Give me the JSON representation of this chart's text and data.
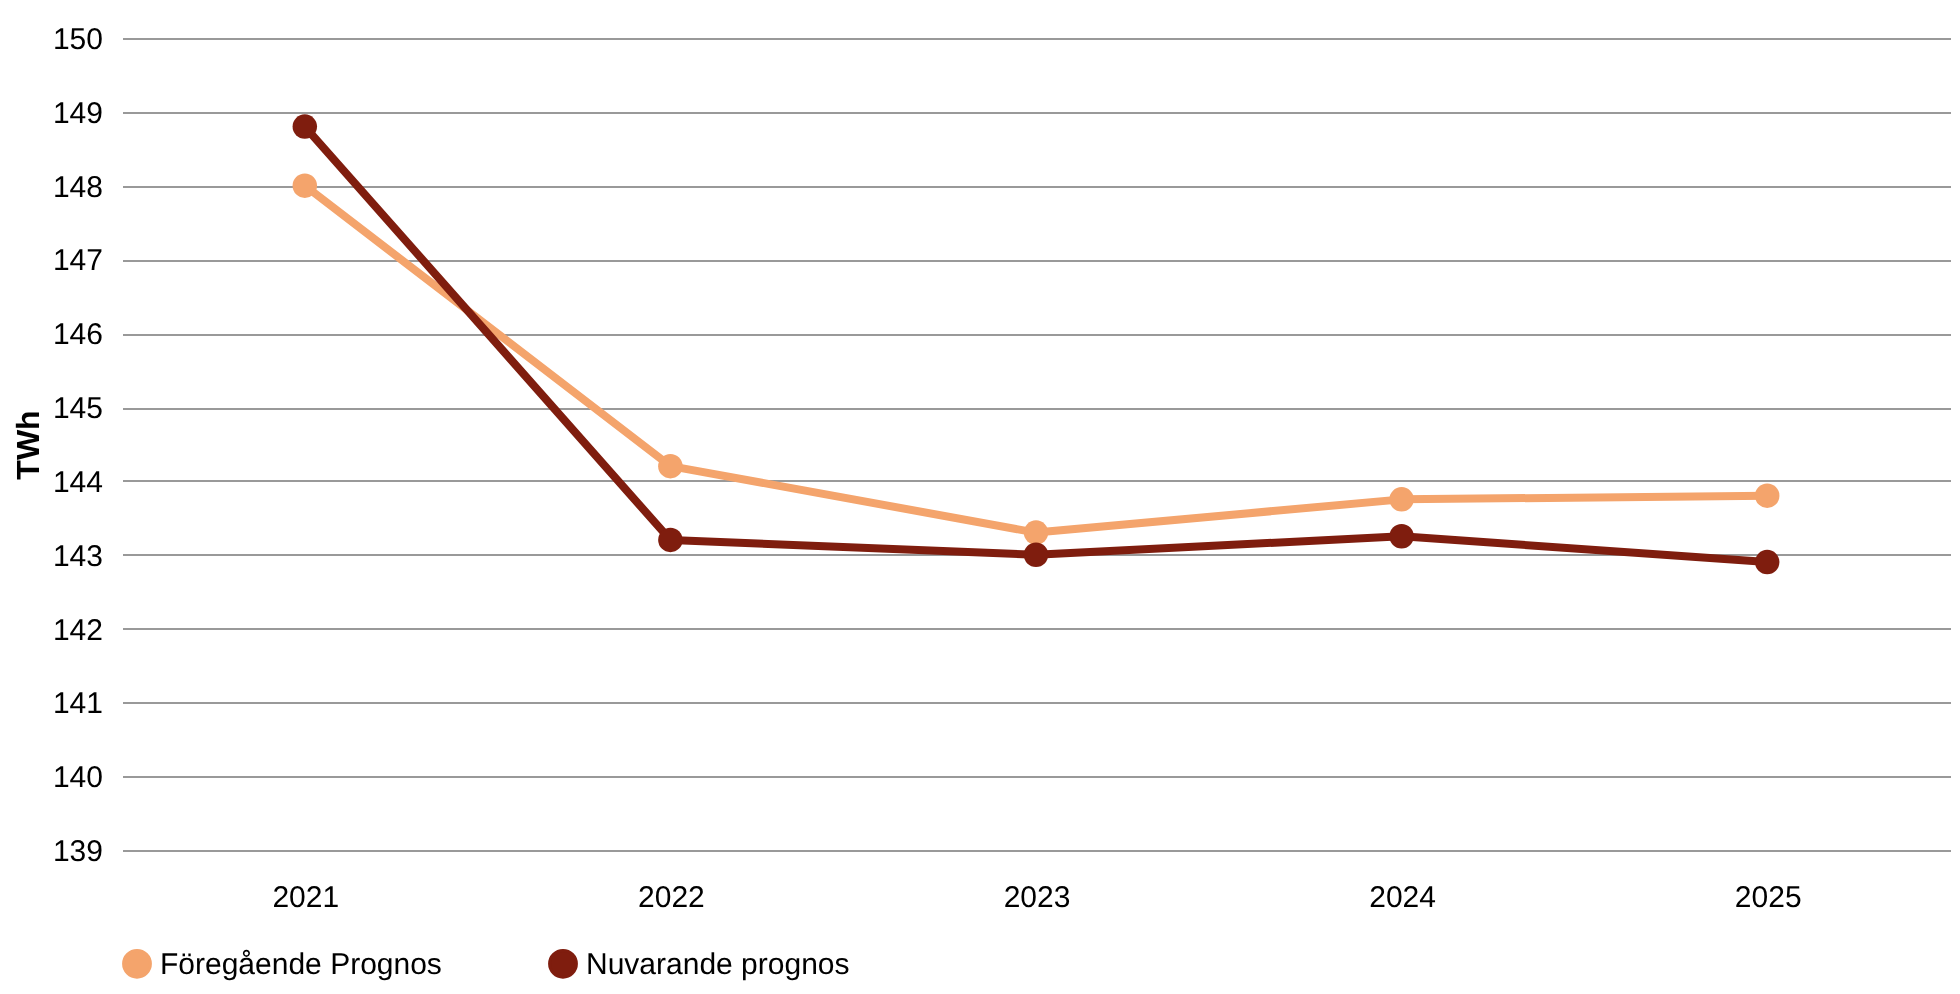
{
  "chart_data": {
    "type": "line",
    "ylabel": "TWh",
    "categories": [
      "2021",
      "2022",
      "2023",
      "2024",
      "2025"
    ],
    "series": [
      {
        "name": "Föregående Prognos",
        "color": "#f4a46c",
        "values": [
          148.0,
          144.2,
          143.3,
          143.75,
          143.8
        ]
      },
      {
        "name": "Nuvarande prognos",
        "color": "#7f1d0e",
        "values": [
          148.8,
          143.2,
          143.0,
          143.25,
          142.9
        ]
      }
    ],
    "ylim": [
      139,
      150
    ],
    "yticks": [
      139,
      140,
      141,
      142,
      143,
      144,
      145,
      146,
      147,
      148,
      149,
      150
    ],
    "grid": "y",
    "legend": "bottom",
    "marker": "circle",
    "line_style": "solid"
  }
}
